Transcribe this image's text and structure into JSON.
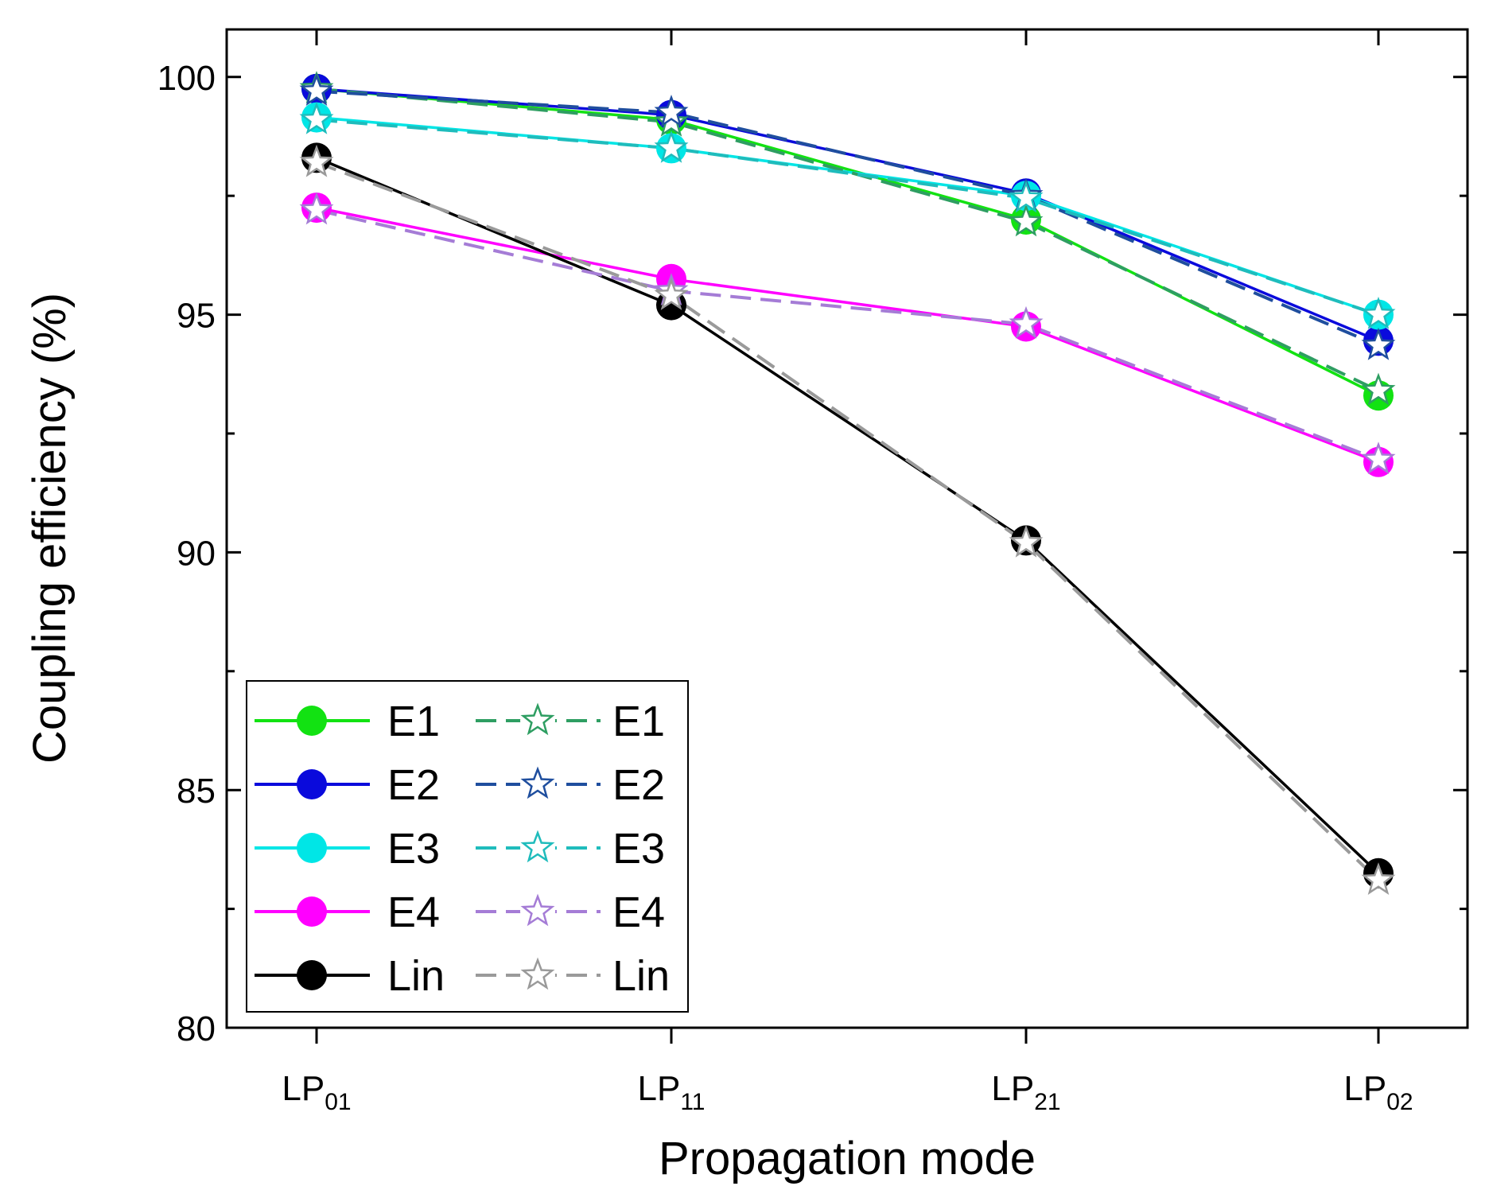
{
  "chart_data": {
    "type": "line",
    "title": "",
    "xlabel": "Propagation mode",
    "ylabel": "Coupling efficiency (%)",
    "categories": [
      {
        "base": "LP",
        "sub": "01"
      },
      {
        "base": "LP",
        "sub": "11"
      },
      {
        "base": "LP",
        "sub": "21"
      },
      {
        "base": "LP",
        "sub": "02"
      }
    ],
    "ylim": [
      80,
      101
    ],
    "yticks": [
      80,
      85,
      90,
      95,
      100
    ],
    "ytick_labels": [
      "80",
      "85",
      "90",
      "95",
      "100"
    ],
    "minor_yticks": [
      82.5,
      87.5,
      92.5,
      97.5
    ],
    "legend_location": "lower-left",
    "series": [
      {
        "name": "E1",
        "style": "solid",
        "marker": "circle",
        "color": "#12e212",
        "values": [
          99.75,
          99.1,
          97.0,
          93.3
        ]
      },
      {
        "name": "E2",
        "style": "solid",
        "marker": "circle",
        "color": "#0a0adc",
        "values": [
          99.75,
          99.2,
          97.55,
          94.45
        ]
      },
      {
        "name": "E3",
        "style": "solid",
        "marker": "circle",
        "color": "#00e6e6",
        "values": [
          99.15,
          98.5,
          97.5,
          95.0
        ]
      },
      {
        "name": "E4",
        "style": "solid",
        "marker": "circle",
        "color": "#ff00ff",
        "values": [
          97.25,
          95.75,
          94.75,
          91.9
        ]
      },
      {
        "name": "Lin",
        "style": "solid",
        "marker": "circle",
        "color": "#000000",
        "values": [
          98.3,
          95.2,
          90.25,
          83.25
        ]
      },
      {
        "name": "E1",
        "style": "dashed",
        "marker": "star",
        "color": "#2e9e62",
        "values": [
          99.75,
          99.05,
          96.95,
          93.4
        ]
      },
      {
        "name": "E2",
        "style": "dashed",
        "marker": "star",
        "color": "#1f4e9e",
        "values": [
          99.7,
          99.25,
          97.5,
          94.35
        ]
      },
      {
        "name": "E3",
        "style": "dashed",
        "marker": "star",
        "color": "#1fbcbc",
        "values": [
          99.1,
          98.5,
          97.45,
          95.0
        ]
      },
      {
        "name": "E4",
        "style": "dashed",
        "marker": "star",
        "color": "#a57cd6",
        "values": [
          97.2,
          95.5,
          94.8,
          91.95
        ]
      },
      {
        "name": "Lin",
        "style": "dashed",
        "marker": "star",
        "color": "#9a9a9a",
        "values": [
          98.2,
          95.4,
          90.2,
          83.1
        ]
      }
    ]
  }
}
